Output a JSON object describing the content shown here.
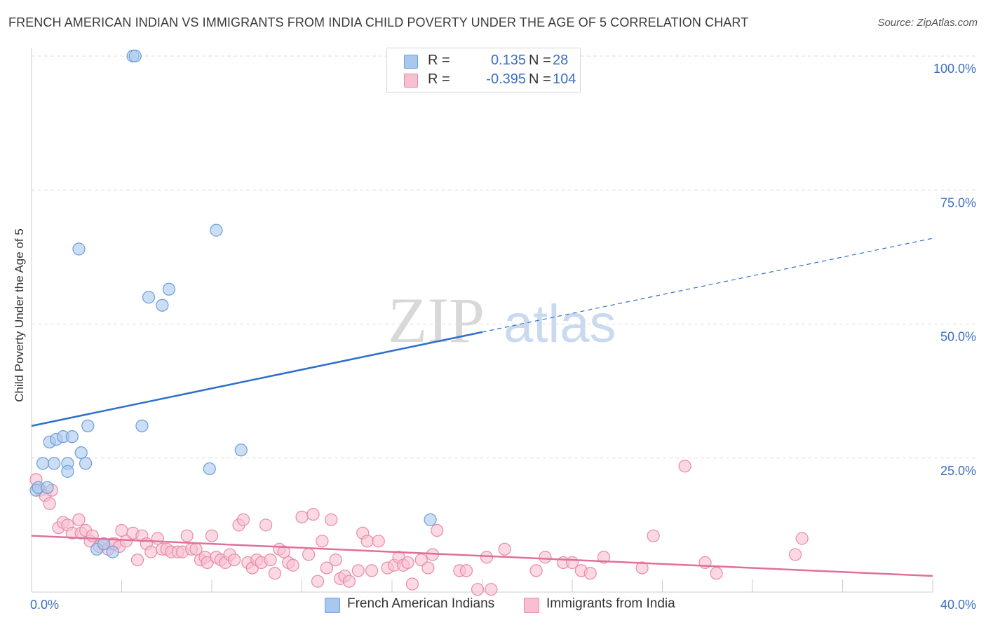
{
  "header": {
    "title": "FRENCH AMERICAN INDIAN VS IMMIGRANTS FROM INDIA CHILD POVERTY UNDER THE AGE OF 5 CORRELATION CHART",
    "source": "Source: ZipAtlas.com"
  },
  "watermark": {
    "zip": "ZIP",
    "atlas": "atlas"
  },
  "legend": {
    "rows": [
      {
        "r_label": "R =",
        "r_value": "0.135",
        "n_label": "N =",
        "n_value": "28",
        "color": "#aac8ee",
        "border": "#6a9fd8"
      },
      {
        "r_label": "R =",
        "r_value": "-0.395",
        "n_label": "N =",
        "n_value": "104",
        "color": "#f8bfd0",
        "border": "#e88aa8"
      }
    ]
  },
  "bottom_legend": [
    {
      "label": "French American Indians",
      "color": "#aac8ee",
      "border": "#6a9fd8"
    },
    {
      "label": "Immigrants from India",
      "color": "#f8bfd0",
      "border": "#e88aa8"
    }
  ],
  "chart_data": {
    "type": "scatter",
    "title": "FRENCH AMERICAN INDIAN VS IMMIGRANTS FROM INDIA CHILD POVERTY UNDER THE AGE OF 5 CORRELATION CHART",
    "xlabel": "",
    "ylabel": "Child Poverty Under the Age of 5",
    "xlim": [
      0,
      40
    ],
    "ylim": [
      0,
      100
    ],
    "x_tick_labels": [
      "0.0%",
      "40.0%"
    ],
    "y_ticks": [
      25,
      50,
      75,
      100
    ],
    "y_tick_labels": [
      "25.0%",
      "50.0%",
      "75.0%",
      "100.0%"
    ],
    "grid": true,
    "series": [
      {
        "name": "French American Indians",
        "color": "#aac8ee",
        "edge": "#6a9fd8",
        "trend_color": "#2e6fcb",
        "trend": {
          "x0": 0,
          "y0": 31.0,
          "x_solid_end": 20.0,
          "y_solid_end": 48.5,
          "x1": 40,
          "y1": 66.0
        },
        "points": [
          [
            0.2,
            19.0
          ],
          [
            0.3,
            19.5
          ],
          [
            0.5,
            24.0
          ],
          [
            0.7,
            19.5
          ],
          [
            0.8,
            28.0
          ],
          [
            1.0,
            24.0
          ],
          [
            1.1,
            28.5
          ],
          [
            1.4,
            29.0
          ],
          [
            1.6,
            24.0
          ],
          [
            1.6,
            22.5
          ],
          [
            1.8,
            29.0
          ],
          [
            2.1,
            64.0
          ],
          [
            2.2,
            26.0
          ],
          [
            2.4,
            24.0
          ],
          [
            2.5,
            31.0
          ],
          [
            2.9,
            8.0
          ],
          [
            3.2,
            9.0
          ],
          [
            3.6,
            7.5
          ],
          [
            4.5,
            100.0
          ],
          [
            4.6,
            100.0
          ],
          [
            4.9,
            31.0
          ],
          [
            5.2,
            55.0
          ],
          [
            5.8,
            53.5
          ],
          [
            6.1,
            56.5
          ],
          [
            7.9,
            23.0
          ],
          [
            8.2,
            67.5
          ],
          [
            9.3,
            26.5
          ],
          [
            17.7,
            13.5
          ]
        ]
      },
      {
        "name": "Immigrants from India",
        "color": "#f8bfd0",
        "edge": "#e88aa8",
        "trend_color": "#e0709a",
        "trend": {
          "x0": 0,
          "y0": 10.5,
          "x1": 40,
          "y1": 3.0
        },
        "points": [
          [
            0.2,
            21.0
          ],
          [
            0.4,
            19.0
          ],
          [
            0.6,
            18.0
          ],
          [
            0.8,
            16.5
          ],
          [
            0.9,
            19.0
          ],
          [
            1.2,
            12.0
          ],
          [
            1.4,
            13.0
          ],
          [
            1.6,
            12.5
          ],
          [
            1.8,
            11.0
          ],
          [
            2.1,
            13.5
          ],
          [
            2.2,
            11.0
          ],
          [
            2.4,
            11.5
          ],
          [
            2.6,
            9.5
          ],
          [
            2.7,
            10.5
          ],
          [
            3.0,
            8.5
          ],
          [
            3.2,
            9.0
          ],
          [
            3.4,
            8.0
          ],
          [
            3.6,
            9.0
          ],
          [
            3.7,
            9.0
          ],
          [
            3.9,
            8.5
          ],
          [
            4.0,
            11.5
          ],
          [
            4.2,
            9.5
          ],
          [
            4.5,
            11.0
          ],
          [
            4.7,
            6.0
          ],
          [
            4.9,
            10.5
          ],
          [
            5.1,
            9.0
          ],
          [
            5.3,
            7.5
          ],
          [
            5.6,
            10.0
          ],
          [
            5.8,
            8.0
          ],
          [
            6.0,
            8.0
          ],
          [
            6.2,
            7.5
          ],
          [
            6.5,
            7.5
          ],
          [
            6.7,
            7.5
          ],
          [
            6.9,
            10.5
          ],
          [
            7.1,
            8.0
          ],
          [
            7.3,
            8.0
          ],
          [
            7.5,
            6.0
          ],
          [
            7.7,
            6.5
          ],
          [
            7.8,
            5.5
          ],
          [
            8.0,
            10.5
          ],
          [
            8.2,
            6.5
          ],
          [
            8.4,
            6.0
          ],
          [
            8.6,
            5.5
          ],
          [
            8.8,
            7.0
          ],
          [
            9.0,
            6.0
          ],
          [
            9.2,
            12.5
          ],
          [
            9.4,
            13.5
          ],
          [
            9.6,
            5.5
          ],
          [
            9.8,
            4.5
          ],
          [
            10.0,
            6.0
          ],
          [
            10.2,
            5.5
          ],
          [
            10.4,
            12.5
          ],
          [
            10.6,
            6.0
          ],
          [
            10.8,
            3.5
          ],
          [
            11.0,
            8.0
          ],
          [
            11.2,
            7.5
          ],
          [
            11.4,
            5.5
          ],
          [
            11.6,
            5.0
          ],
          [
            12.0,
            14.0
          ],
          [
            12.3,
            7.0
          ],
          [
            12.5,
            14.5
          ],
          [
            12.7,
            2.0
          ],
          [
            12.9,
            9.5
          ],
          [
            13.1,
            4.5
          ],
          [
            13.3,
            13.5
          ],
          [
            13.5,
            6.0
          ],
          [
            13.7,
            2.5
          ],
          [
            13.9,
            3.0
          ],
          [
            14.1,
            2.0
          ],
          [
            14.5,
            4.0
          ],
          [
            14.7,
            11.0
          ],
          [
            14.9,
            9.5
          ],
          [
            15.1,
            4.0
          ],
          [
            15.4,
            9.5
          ],
          [
            15.8,
            4.5
          ],
          [
            16.1,
            5.0
          ],
          [
            16.3,
            6.5
          ],
          [
            16.5,
            5.0
          ],
          [
            16.7,
            5.5
          ],
          [
            16.9,
            1.5
          ],
          [
            17.3,
            6.0
          ],
          [
            17.6,
            4.5
          ],
          [
            17.8,
            7.0
          ],
          [
            18.0,
            11.5
          ],
          [
            19.0,
            4.0
          ],
          [
            19.3,
            4.0
          ],
          [
            19.8,
            0.5
          ],
          [
            20.2,
            6.5
          ],
          [
            20.4,
            0.5
          ],
          [
            21.0,
            8.0
          ],
          [
            22.4,
            4.0
          ],
          [
            22.8,
            6.5
          ],
          [
            23.6,
            5.5
          ],
          [
            24.0,
            5.5
          ],
          [
            24.4,
            4.0
          ],
          [
            24.8,
            3.5
          ],
          [
            25.4,
            6.5
          ],
          [
            27.1,
            4.5
          ],
          [
            27.6,
            10.5
          ],
          [
            29.0,
            23.5
          ],
          [
            29.9,
            5.5
          ],
          [
            30.4,
            3.5
          ],
          [
            33.9,
            7.0
          ],
          [
            34.2,
            10.0
          ]
        ]
      }
    ]
  }
}
